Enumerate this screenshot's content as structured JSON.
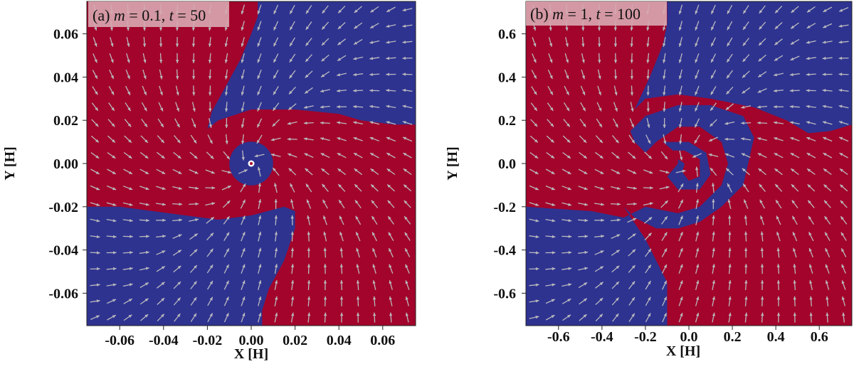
{
  "chart_data": [
    {
      "type": "vector-field",
      "panel_label": "(a) m = 0.1, t = 50",
      "label_parts": {
        "prefix": "(a) ",
        "m_symbol": "m",
        "m_value": " = 0.1, ",
        "t_symbol": "t",
        "t_value": " = 50"
      },
      "xlabel": "X [H]",
      "ylabel": "Y [H]",
      "xlim": [
        -0.075,
        0.075
      ],
      "ylim": [
        -0.075,
        0.075
      ],
      "xticks": [
        -0.06,
        -0.04,
        -0.02,
        0.0,
        0.02,
        0.04,
        0.06
      ],
      "xtick_labels": [
        "-0.06",
        "-0.04",
        "-0.02",
        "0.00",
        "0.02",
        "0.04",
        "0.06"
      ],
      "yticks": [
        -0.06,
        -0.04,
        -0.02,
        0.0,
        0.02,
        0.04,
        0.06
      ],
      "ytick_labels": [
        "-0.06",
        "-0.04",
        "-0.02",
        "0.00",
        "0.02",
        "0.04",
        "0.06"
      ],
      "colors": {
        "positive": "#a3042b",
        "negative": "#2e3390",
        "arrow": "#b9b9bd"
      },
      "background_region": "positive",
      "regions": [
        {
          "sign": "negative",
          "points": [
            [
              0.003,
              0.075
            ],
            [
              0.075,
              0.075
            ],
            [
              0.075,
              0.018
            ],
            [
              0.065,
              0.018
            ],
            [
              0.05,
              0.02
            ],
            [
              0.04,
              0.023
            ],
            [
              0.02,
              0.025
            ],
            [
              0.0,
              0.025
            ],
            [
              -0.015,
              0.02
            ],
            [
              -0.02,
              0.016
            ],
            [
              -0.018,
              0.024
            ],
            [
              -0.012,
              0.035
            ],
            [
              -0.005,
              0.048
            ],
            [
              0.0,
              0.06
            ],
            [
              0.003,
              0.068
            ]
          ]
        },
        {
          "sign": "negative",
          "points": [
            [
              -0.075,
              -0.02
            ],
            [
              -0.06,
              -0.02
            ],
            [
              -0.045,
              -0.022
            ],
            [
              -0.03,
              -0.024
            ],
            [
              -0.015,
              -0.026
            ],
            [
              0.0,
              -0.024
            ],
            [
              0.015,
              -0.02
            ],
            [
              0.02,
              -0.022
            ],
            [
              0.02,
              -0.03
            ],
            [
              0.015,
              -0.045
            ],
            [
              0.008,
              -0.058
            ],
            [
              0.005,
              -0.068
            ],
            [
              0.005,
              -0.075
            ],
            [
              -0.075,
              -0.075
            ]
          ]
        },
        {
          "sign": "negative",
          "circle": [
            0.0,
            0.0,
            0.01
          ]
        }
      ],
      "marker": [
        0.0,
        0.0
      ]
    },
    {
      "type": "vector-field",
      "panel_label": "(b) m = 1, t = 100",
      "label_parts": {
        "prefix": "(b) ",
        "m_symbol": "m",
        "m_value": " = 1, ",
        "t_symbol": "t",
        "t_value": " = 100"
      },
      "xlabel": "X [H]",
      "ylabel": "Y [H]",
      "xlim": [
        -0.75,
        0.75
      ],
      "ylim": [
        -0.75,
        0.75
      ],
      "xticks": [
        -0.6,
        -0.4,
        -0.2,
        0.0,
        0.2,
        0.4,
        0.6
      ],
      "xtick_labels": [
        "-0.6",
        "-0.4",
        "-0.2",
        "0.0",
        "0.2",
        "0.4",
        "0.6"
      ],
      "yticks": [
        -0.6,
        -0.4,
        -0.2,
        0.0,
        0.2,
        0.4,
        0.6
      ],
      "ytick_labels": [
        "-0.6",
        "-0.4",
        "-0.2",
        "0.0",
        "0.2",
        "0.4",
        "0.6"
      ],
      "colors": {
        "positive": "#a3042b",
        "negative": "#2e3390",
        "arrow": "#b9b9bd"
      },
      "background_region": "positive",
      "regions": [
        {
          "sign": "negative",
          "points": [
            [
              -0.1,
              0.75
            ],
            [
              0.75,
              0.75
            ],
            [
              0.75,
              0.18
            ],
            [
              0.65,
              0.15
            ],
            [
              0.55,
              0.14
            ],
            [
              0.45,
              0.2
            ],
            [
              0.3,
              0.26
            ],
            [
              0.1,
              0.3
            ],
            [
              -0.05,
              0.32
            ],
            [
              -0.2,
              0.3
            ],
            [
              -0.25,
              0.25
            ],
            [
              -0.18,
              0.4
            ],
            [
              -0.12,
              0.55
            ],
            [
              -0.1,
              0.65
            ]
          ]
        },
        {
          "sign": "negative",
          "points": [
            [
              -0.05,
              0.27
            ],
            [
              0.1,
              0.27
            ],
            [
              0.25,
              0.22
            ],
            [
              0.3,
              0.12
            ],
            [
              0.25,
              -0.1
            ],
            [
              0.2,
              -0.15
            ],
            [
              0.15,
              -0.2
            ],
            [
              0.05,
              -0.27
            ],
            [
              -0.05,
              -0.3
            ],
            [
              -0.15,
              -0.3
            ],
            [
              -0.25,
              -0.25
            ],
            [
              -0.3,
              -0.2
            ],
            [
              -0.2,
              -0.35
            ],
            [
              -0.15,
              -0.45
            ],
            [
              -0.1,
              -0.55
            ],
            [
              -0.1,
              -0.75
            ],
            [
              -0.75,
              -0.75
            ],
            [
              -0.75,
              -0.2
            ],
            [
              -0.45,
              -0.22
            ],
            [
              -0.3,
              -0.25
            ],
            [
              -0.2,
              -0.2
            ],
            [
              -0.05,
              -0.23
            ],
            [
              0.05,
              -0.2
            ],
            [
              0.15,
              -0.1
            ],
            [
              0.18,
              0.0
            ],
            [
              0.15,
              0.1
            ],
            [
              0.05,
              0.17
            ],
            [
              -0.05,
              0.17
            ],
            [
              -0.15,
              0.1
            ],
            [
              -0.2,
              0.05
            ],
            [
              -0.25,
              0.1
            ],
            [
              -0.27,
              0.15
            ],
            [
              -0.2,
              0.22
            ]
          ]
        },
        {
          "sign": "negative",
          "points": [
            [
              -0.12,
              0.1
            ],
            [
              0.0,
              0.1
            ],
            [
              0.08,
              0.05
            ],
            [
              0.1,
              -0.05
            ],
            [
              0.05,
              -0.12
            ],
            [
              -0.05,
              -0.12
            ],
            [
              -0.1,
              -0.06
            ],
            [
              -0.05,
              0.0
            ],
            [
              -0.05,
              0.04
            ]
          ]
        },
        {
          "sign": "positive",
          "points": [
            [
              -0.08,
              0.06
            ],
            [
              -0.02,
              0.06
            ],
            [
              0.05,
              0.02
            ],
            [
              0.05,
              -0.06
            ],
            [
              0.0,
              -0.08
            ],
            [
              -0.03,
              -0.04
            ],
            [
              -0.02,
              0.0
            ],
            [
              -0.05,
              0.02
            ]
          ]
        }
      ]
    }
  ]
}
